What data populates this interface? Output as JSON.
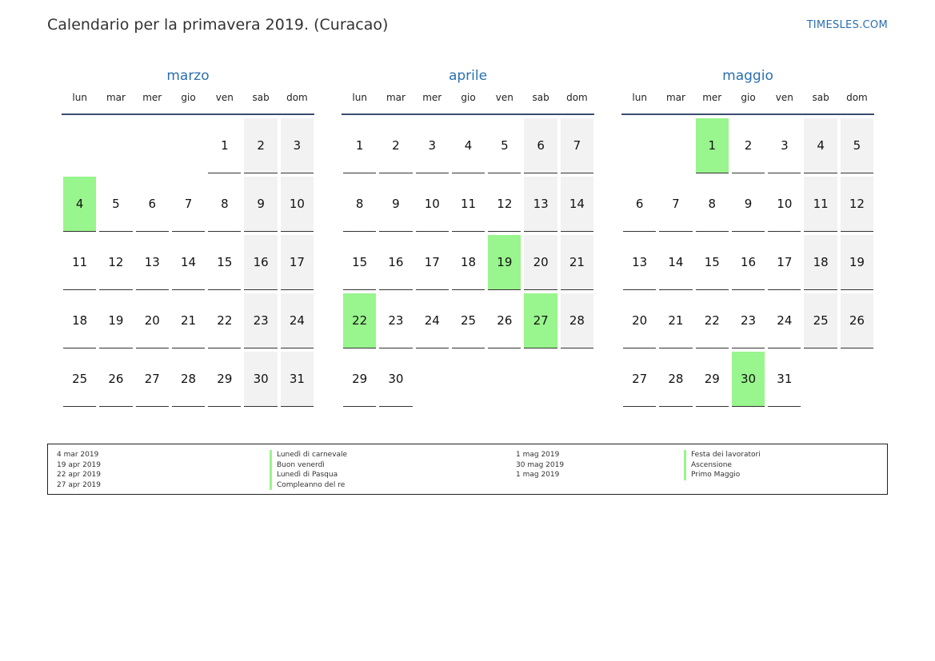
{
  "header": {
    "title": "Calendario per la primavera 2019. (Curacao)",
    "site": "TIMESLES.COM"
  },
  "colors": {
    "accent": "#2a6fb0",
    "holiday": "#99f58d",
    "weekend": "#f2f2f2"
  },
  "weekdays": [
    "lun",
    "mar",
    "mer",
    "gio",
    "ven",
    "sab",
    "dom"
  ],
  "months": [
    {
      "name": "marzo",
      "offset": 4,
      "days": 31,
      "holidays": [
        4
      ]
    },
    {
      "name": "aprile",
      "offset": 0,
      "days": 30,
      "holidays": [
        19,
        22,
        27
      ]
    },
    {
      "name": "maggio",
      "offset": 2,
      "days": 31,
      "holidays": [
        1,
        30
      ]
    }
  ],
  "legend": {
    "left_dates": [
      "4 mar 2019",
      "19 apr 2019",
      "22 apr 2019",
      "27 apr 2019"
    ],
    "left_names": [
      "Lunedì di carnevale",
      "Buon venerdì",
      "Lunedì di Pasqua",
      "Compleanno del re"
    ],
    "right_dates": [
      "1 mag 2019",
      "30 mag 2019",
      "1 mag 2019"
    ],
    "right_names": [
      "Festa dei lavoratori",
      "Ascensione",
      "Primo Maggio"
    ]
  }
}
